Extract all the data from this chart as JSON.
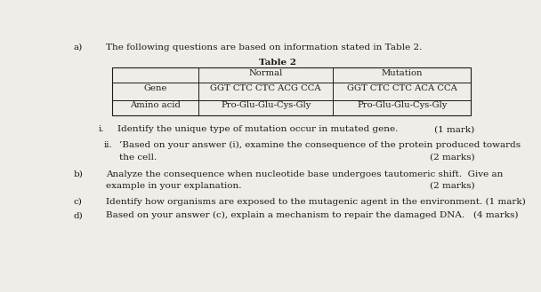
{
  "bg_color": "#f0ede8",
  "font_color": "#1a1a1a",
  "intro_label": "a)",
  "intro_text": "The following questions are based on information stated in Table 2.",
  "table_title": "Table 2",
  "table_amino_normal": "Pro-Glu-Glu-Cys-Gly",
  "table_amino_mutation": "Pro-Glu-Glu-Cys-Gly",
  "table_gene_normal": "GGT CTC CTC ACG CCA",
  "table_gene_mutation": "GGT CTC CTC ACA CCA",
  "fs_main": 7.5,
  "fs_table": 7.2,
  "fs_bold": 7.5
}
